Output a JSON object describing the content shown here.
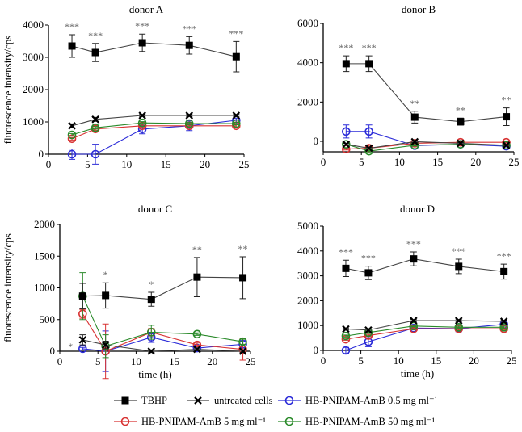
{
  "legend": [
    {
      "name": "TBHP",
      "marker": "square",
      "color": "#000000"
    },
    {
      "name": "untreated cells",
      "marker": "x",
      "color": "#000000"
    },
    {
      "name": "HB-PNIPAM-AmB 0.5 mg ml⁻¹",
      "marker": "circle",
      "color": "#2b2bd8"
    },
    {
      "name": "HB-PNIPAM-AmB 5 mg ml⁻¹",
      "marker": "circle",
      "color": "#d83232"
    },
    {
      "name": "HB-PNIPAM-AmB 50 mg ml⁻¹",
      "marker": "circle",
      "color": "#2a8a2a"
    }
  ],
  "chart_data": [
    {
      "type": "line",
      "title": "donor A",
      "xlabel": "",
      "ylabel": "fluorescence intensity/cps",
      "x": [
        3,
        6,
        12,
        18,
        24
      ],
      "xlim": [
        0,
        25
      ],
      "xticks": [
        0,
        5,
        10,
        15,
        20,
        25
      ],
      "ylim": [
        0,
        4000
      ],
      "yticks": [
        0,
        1000,
        2000,
        3000,
        4000
      ],
      "significance": [
        "***",
        "***",
        "***",
        "***",
        "***"
      ],
      "series": [
        {
          "name": "TBHP",
          "values": [
            3350,
            3150,
            3450,
            3370,
            3020
          ],
          "errors": [
            350,
            280,
            270,
            270,
            470
          ]
        },
        {
          "name": "untreated cells",
          "values": [
            880,
            1080,
            1200,
            1200,
            1200
          ],
          "errors": [
            60,
            60,
            30,
            30,
            30
          ]
        },
        {
          "name": "HB-PNIPAM-AmB 0.5 mg ml⁻¹",
          "values": [
            0,
            0,
            780,
            880,
            1050
          ],
          "errors": [
            160,
            310,
            150,
            150,
            60
          ]
        },
        {
          "name": "HB-PNIPAM-AmB 5 mg ml⁻¹",
          "values": [
            480,
            780,
            880,
            880,
            880
          ],
          "errors": [
            40,
            40,
            40,
            40,
            40
          ]
        },
        {
          "name": "HB-PNIPAM-AmB 50 mg ml⁻¹",
          "values": [
            600,
            820,
            970,
            950,
            950
          ],
          "errors": [
            40,
            40,
            40,
            40,
            40
          ]
        }
      ]
    },
    {
      "type": "line",
      "title": "donor B",
      "xlabel": "",
      "ylabel": "",
      "x": [
        3,
        6,
        12,
        18,
        24
      ],
      "xlim": [
        0,
        25
      ],
      "xticks": [
        0,
        5,
        10,
        15,
        20,
        25
      ],
      "ylim": [
        -500,
        6000
      ],
      "yticks": [
        0,
        2000,
        4000,
        6000
      ],
      "significance": [
        "***",
        "***",
        "**",
        "**",
        "**"
      ],
      "series": [
        {
          "name": "TBHP",
          "values": [
            3950,
            3950,
            1230,
            1000,
            1250
          ],
          "errors": [
            400,
            400,
            300,
            180,
            450
          ]
        },
        {
          "name": "untreated cells",
          "values": [
            -150,
            -350,
            -20,
            -100,
            -200
          ],
          "errors": [
            40,
            40,
            40,
            40,
            40
          ]
        },
        {
          "name": "HB-PNIPAM-AmB 0.5 mg ml⁻¹",
          "values": [
            500,
            500,
            -220,
            -150,
            -250
          ],
          "errors": [
            330,
            330,
            40,
            40,
            40
          ]
        },
        {
          "name": "HB-PNIPAM-AmB 5 mg ml⁻¹",
          "values": [
            -400,
            -350,
            -100,
            -50,
            -50
          ],
          "errors": [
            40,
            150,
            40,
            40,
            40
          ]
        },
        {
          "name": "HB-PNIPAM-AmB 50 mg ml⁻¹",
          "values": [
            -150,
            -500,
            -200,
            -150,
            -200
          ],
          "errors": [
            40,
            40,
            40,
            40,
            40
          ]
        }
      ]
    },
    {
      "type": "line",
      "title": "donor C",
      "xlabel": "time (h)",
      "ylabel": "fluorescence intensity/cps",
      "x": [
        3,
        6,
        12,
        18,
        24
      ],
      "xlim": [
        0,
        25
      ],
      "xticks": [
        0,
        5,
        10,
        15,
        20,
        25
      ],
      "ylim": [
        0,
        2000
      ],
      "yticks": [
        0,
        500,
        1000,
        1500,
        2000
      ],
      "significance": [
        "*",
        "*",
        "*",
        "**",
        "**"
      ],
      "series": [
        {
          "name": "TBHP",
          "values": [
            870,
            880,
            820,
            1170,
            1160
          ],
          "errors": [
            200,
            200,
            110,
            310,
            330
          ]
        },
        {
          "name": "untreated cells",
          "values": [
            180,
            100,
            0,
            30,
            0
          ],
          "errors": [
            80,
            60,
            20,
            20,
            20
          ]
        },
        {
          "name": "HB-PNIPAM-AmB 0.5 mg ml⁻¹",
          "values": [
            40,
            0,
            220,
            50,
            110
          ],
          "errors": [
            20,
            320,
            80,
            20,
            60
          ]
        },
        {
          "name": "HB-PNIPAM-AmB 5 mg ml⁻¹",
          "values": [
            590,
            0,
            300,
            100,
            30
          ],
          "errors": [
            70,
            430,
            60,
            30,
            170
          ]
        },
        {
          "name": "HB-PNIPAM-AmB 50 mg ml⁻¹",
          "values": [
            870,
            80,
            300,
            270,
            150
          ],
          "errors": [
            370,
            180,
            110,
            20,
            40
          ]
        }
      ]
    },
    {
      "type": "line",
      "title": "donor D",
      "xlabel": "time (h)",
      "ylabel": "",
      "x": [
        3,
        6,
        12,
        18,
        24
      ],
      "xlim": [
        0,
        25
      ],
      "xticks": [
        0,
        5,
        10,
        15,
        20,
        25
      ],
      "ylim": [
        0,
        5000
      ],
      "yticks": [
        0,
        1000,
        2000,
        3000,
        4000,
        5000
      ],
      "significance": [
        "***",
        "***",
        "***",
        "***",
        "***"
      ],
      "series": [
        {
          "name": "TBHP",
          "values": [
            3300,
            3120,
            3680,
            3380,
            3170
          ],
          "errors": [
            330,
            270,
            280,
            290,
            300
          ]
        },
        {
          "name": "untreated cells",
          "values": [
            860,
            820,
            1200,
            1200,
            1170
          ],
          "errors": [
            40,
            40,
            40,
            40,
            40
          ]
        },
        {
          "name": "HB-PNIPAM-AmB 0.5 mg ml⁻¹",
          "values": [
            0,
            350,
            900,
            880,
            1050
          ],
          "errors": [
            120,
            200,
            60,
            130,
            60
          ]
        },
        {
          "name": "HB-PNIPAM-AmB 5 mg ml⁻¹",
          "values": [
            450,
            600,
            870,
            870,
            870
          ],
          "errors": [
            40,
            40,
            40,
            40,
            40
          ]
        },
        {
          "name": "HB-PNIPAM-AmB 50 mg ml⁻¹",
          "values": [
            580,
            720,
            980,
            930,
            930
          ],
          "errors": [
            40,
            40,
            40,
            40,
            40
          ]
        }
      ]
    }
  ]
}
